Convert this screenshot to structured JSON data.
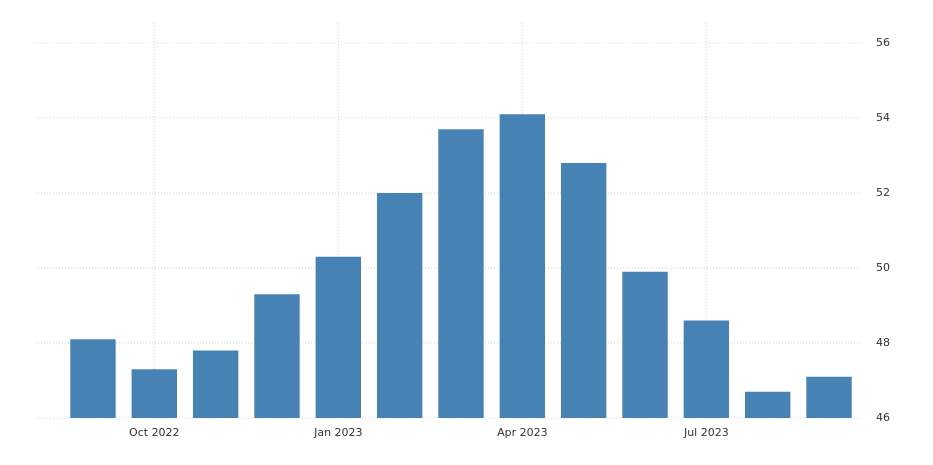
{
  "chart_data": {
    "type": "bar",
    "categories": [
      null,
      "Oct 2022",
      null,
      null,
      "Jan 2023",
      null,
      null,
      "Apr 2023",
      null,
      null,
      "Jul 2023",
      null,
      null
    ],
    "values": [
      48.1,
      47.3,
      47.8,
      49.3,
      50.3,
      52.0,
      53.7,
      54.1,
      52.8,
      49.9,
      48.6,
      46.7,
      47.1
    ],
    "color": "#4682b4",
    "ylim": [
      46,
      56
    ],
    "yticks": [
      46,
      48,
      50,
      52,
      54,
      56
    ],
    "grid": true
  }
}
